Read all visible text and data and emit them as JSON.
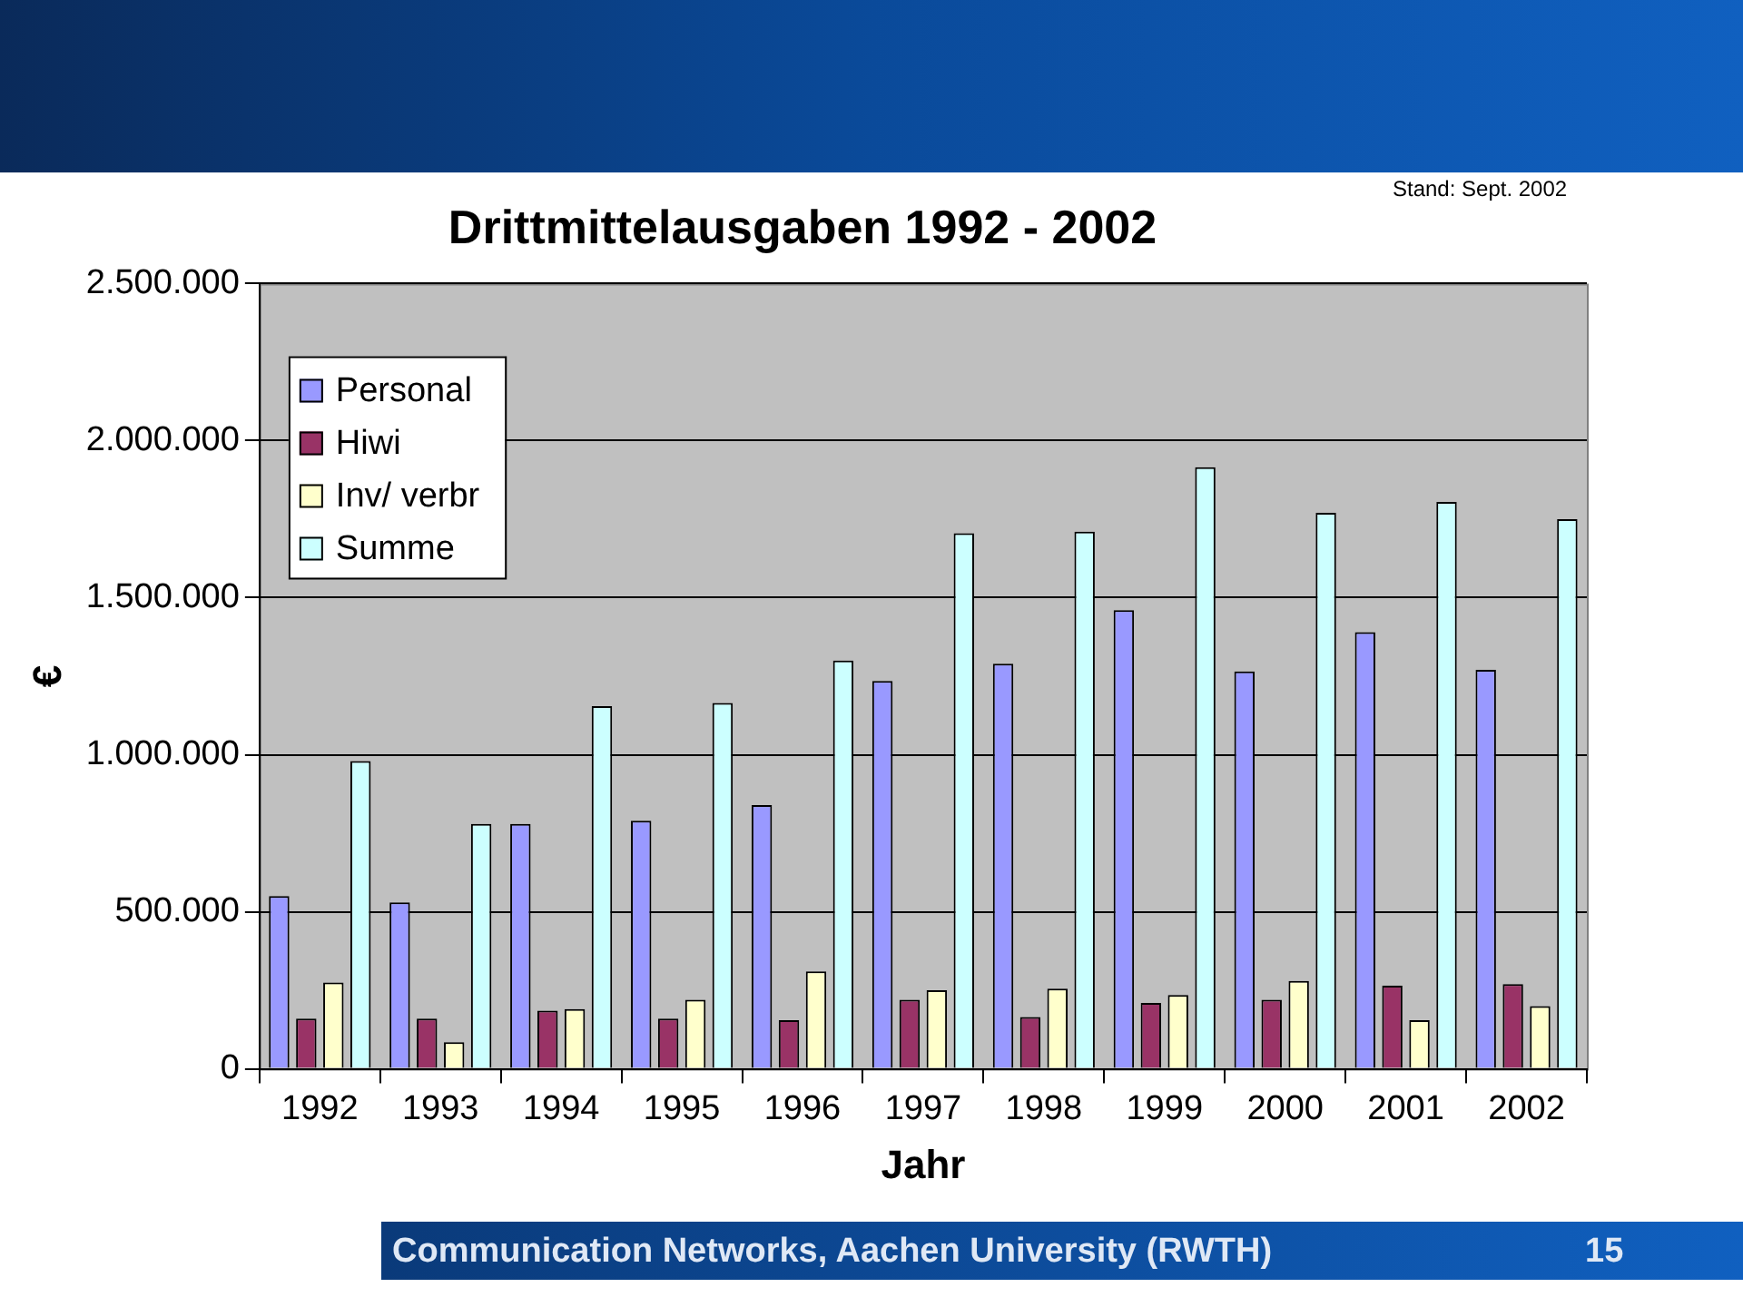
{
  "chart_data": {
    "type": "bar",
    "title": "Drittmittelausgaben 1992 - 2002",
    "xlabel": "Jahr",
    "ylabel": "€",
    "categories": [
      "1992",
      "1993",
      "1994",
      "1995",
      "1996",
      "1997",
      "1998",
      "1999",
      "2000",
      "2001",
      "2002"
    ],
    "series": [
      {
        "name": "Personal",
        "color": "#9999ff",
        "values": [
          550000,
          530000,
          780000,
          790000,
          840000,
          1235000,
          1290000,
          1460000,
          1265000,
          1390000,
          1270000
        ]
      },
      {
        "name": "Hiwi",
        "color": "#993366",
        "values": [
          160000,
          160000,
          185000,
          160000,
          155000,
          220000,
          165000,
          210000,
          220000,
          265000,
          270000
        ]
      },
      {
        "name": "Inv/ verbr",
        "color": "#ffffcc",
        "values": [
          275000,
          85000,
          190000,
          220000,
          310000,
          250000,
          255000,
          235000,
          280000,
          155000,
          200000
        ]
      },
      {
        "name": "Summe",
        "color": "#ccffff",
        "values": [
          980000,
          780000,
          1155000,
          1165000,
          1300000,
          1705000,
          1710000,
          1915000,
          1770000,
          1805000,
          1750000
        ]
      }
    ],
    "ylim": [
      0,
      2500000
    ],
    "yticks": [
      {
        "value": 0,
        "label": "0"
      },
      {
        "value": 500000,
        "label": "500.000"
      },
      {
        "value": 1000000,
        "label": "1.000.000"
      },
      {
        "value": 1500000,
        "label": "1.500.000"
      },
      {
        "value": 2000000,
        "label": "2.000.000"
      },
      {
        "value": 2500000,
        "label": "2.500.000"
      }
    ],
    "grid": "y",
    "legend": "top left",
    "annotations": [
      "Stand: Sept. 2002",
      "Communication Networks, Aachen University (RWTH)",
      "15"
    ]
  }
}
